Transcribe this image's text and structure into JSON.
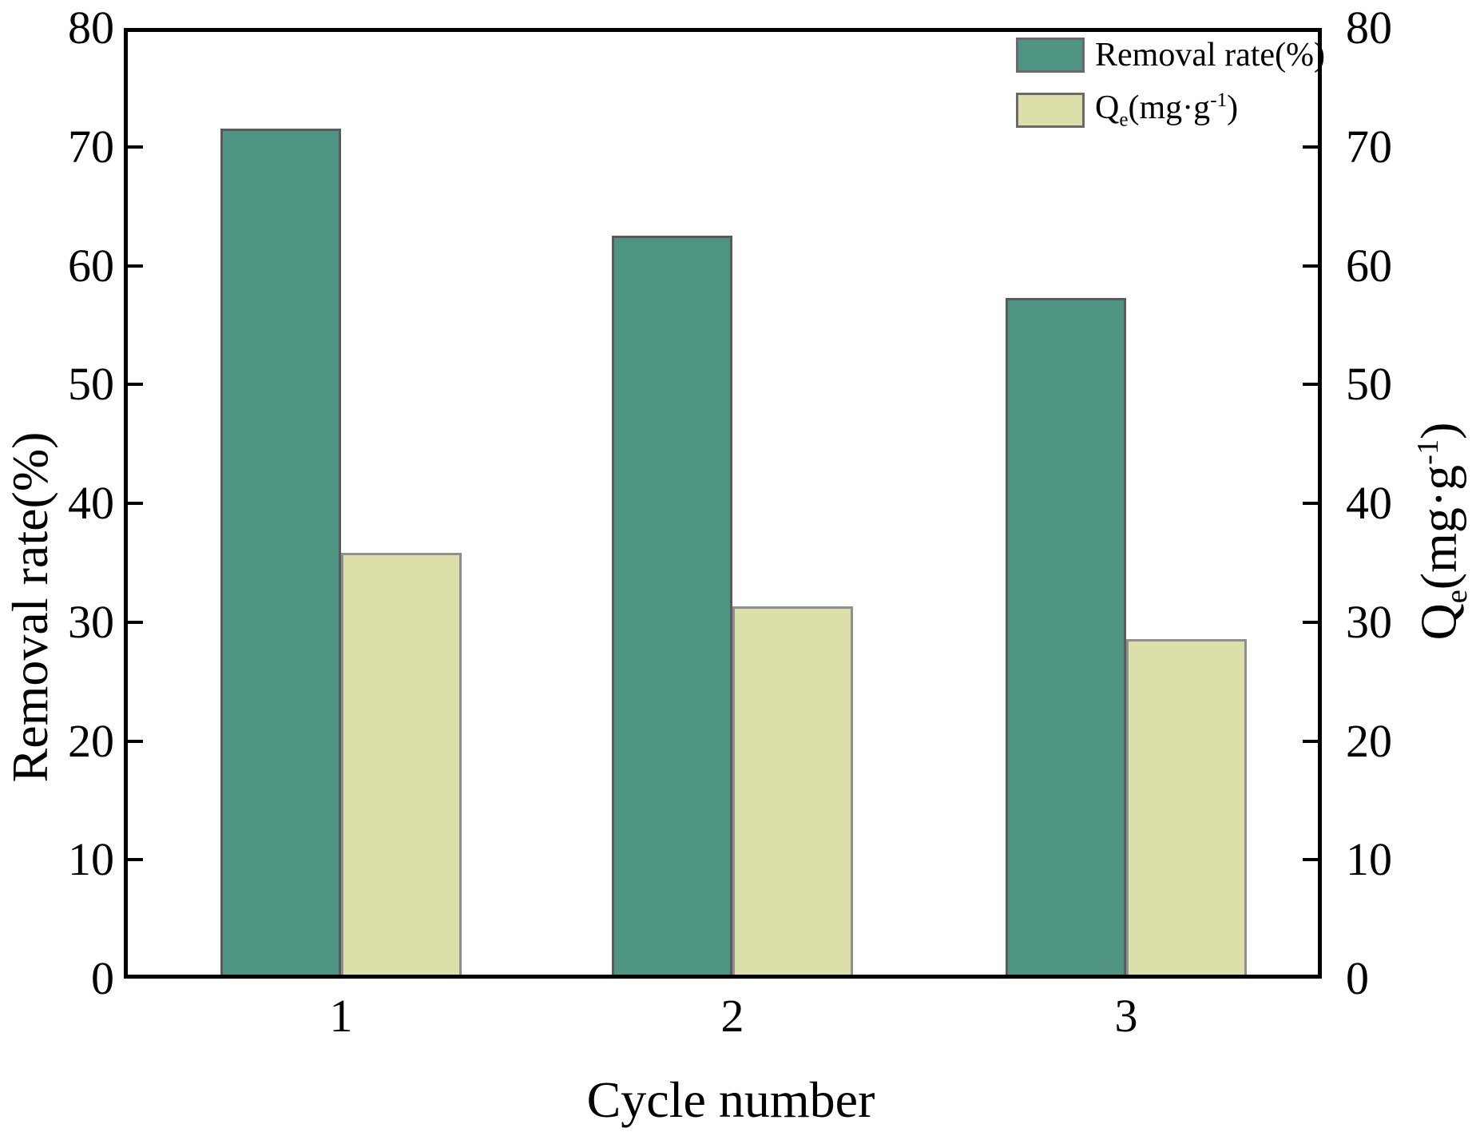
{
  "chart_data": {
    "type": "bar",
    "title": "",
    "xlabel": "Cycle number",
    "ylabel_left": "Removal rate(%)",
    "ylabel_right": "Qe(mg·g-1)",
    "ylabel_right_parts": {
      "q": "Q",
      "sub": "e",
      "mid": "(mg·g",
      "sup": "-1",
      "close": ")"
    },
    "categories": [
      "1",
      "2",
      "3"
    ],
    "series": [
      {
        "name": "Removal rate(%)",
        "values": [
          71.5,
          62.5,
          57.3
        ],
        "color": "#4f9482",
        "border_color": "#5a5a5a"
      },
      {
        "name": "Qe(mg·g-1)",
        "name_parts": {
          "q": "Q",
          "sub": "e",
          "mid": "(mg·g",
          "sup": "-1",
          "close": ")"
        },
        "values": [
          35.8,
          31.3,
          28.6
        ],
        "color": "#dcdfaa",
        "border_color": "#8f8f8f"
      }
    ],
    "ylim": [
      0,
      80
    ],
    "yticks": [
      0,
      10,
      20,
      30,
      40,
      50,
      60,
      70,
      80
    ],
    "ytick_labels": [
      "0",
      "10",
      "20",
      "30",
      "40",
      "50",
      "60",
      "70",
      "80"
    ],
    "grid": false,
    "legend_position": "top-right",
    "axis_color": "#000000",
    "background_color": "#ffffff"
  }
}
